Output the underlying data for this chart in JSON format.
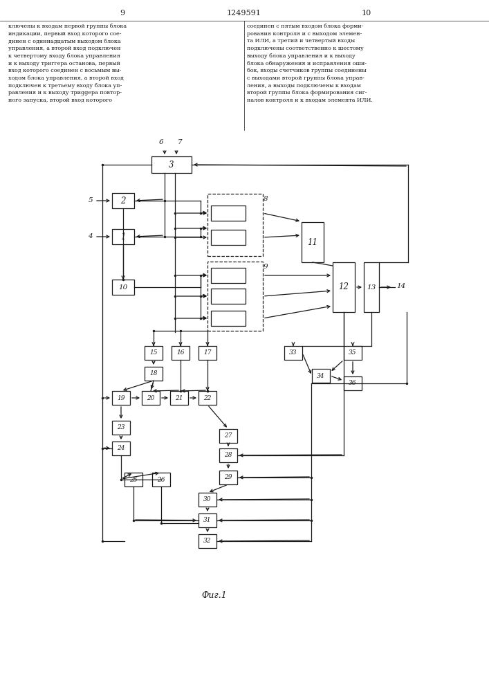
{
  "page_left": "9",
  "page_center": "1249591",
  "page_right": "10",
  "text_left": "ключены к входам первой группы блока\nиндикации, первый вход которого сое-\nдинен с одиннадцатым выходом блока\nуправления, а второй вход подключен\nк четвертому входу блока управления\nи к выходу триггера останова, первый\nвход которого соединен с восьмым вы-\nходом блока управления, а второй вход\nподключен к третьему входу блока уп-\nравления и к выходу триggера повтор-\nного запуска, второй вход которого",
  "text_right": "соединен с пятым входом блока форми-\nрования контроля и с выходом элемен-\nта ИЛИ, а третий и четвертый входы\nподключены соответственно к шестому\nвыходу блока управления и к выходу\nблока обнаружения и исправления оши-\nбок, входы счетчиков группы соединены\nс выходами второй группы блока управ-\nления, а выходы подключены к входам\nвторой группы блока формирования сиг-\nналов контроля и к входам элемента ИЛИ.",
  "caption": "Фиг.1",
  "bg": "#ffffff",
  "lc": "#1a1a1a"
}
